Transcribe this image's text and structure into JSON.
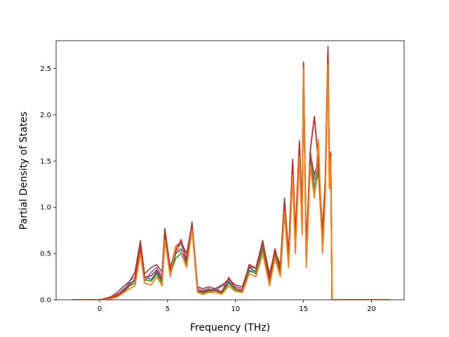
{
  "chart_data": {
    "type": "line",
    "title": "",
    "xlabel": "Frequency (THz)",
    "ylabel": "Partial Density of States",
    "xlim": [
      -3.2,
      22.4
    ],
    "ylim": [
      0,
      2.8
    ],
    "xticks": [
      0,
      5,
      10,
      15,
      20
    ],
    "yticks": [
      0.0,
      0.5,
      1.0,
      1.5,
      2.0,
      2.5
    ],
    "xtick_labels": [
      "0",
      "5",
      "10",
      "15",
      "20"
    ],
    "ytick_labels": [
      "0.0",
      "0.5",
      "1.0",
      "1.5",
      "2.0",
      "2.5"
    ],
    "grid": false,
    "legend": false,
    "colors": [
      "#1f77b4",
      "#9467bd",
      "#2ca02c",
      "#8c564b",
      "#d62728",
      "#ff7f0e"
    ],
    "series": [
      {
        "color": "#1f77b4",
        "x": [
          -2.0,
          0.0,
          0.8,
          1.3,
          1.8,
          2.2,
          2.6,
          3.0,
          3.3,
          3.8,
          4.2,
          4.6,
          4.8,
          5.2,
          5.6,
          6.0,
          6.4,
          6.8,
          7.2,
          7.6,
          8.0,
          8.5,
          9.0,
          9.5,
          10.0,
          10.5,
          11.0,
          11.5,
          12.0,
          12.5,
          12.9,
          13.3,
          13.6,
          13.9,
          14.2,
          14.4,
          14.7,
          14.9,
          15.0,
          15.2,
          15.5,
          15.8,
          16.1,
          16.4,
          16.6,
          16.8,
          16.9,
          17.0,
          17.1,
          17.5,
          19.0,
          21.3
        ],
        "y": [
          0,
          0,
          0.02,
          0.05,
          0.12,
          0.18,
          0.2,
          0.62,
          0.25,
          0.22,
          0.3,
          0.2,
          0.76,
          0.3,
          0.5,
          0.55,
          0.4,
          0.84,
          0.1,
          0.08,
          0.1,
          0.12,
          0.08,
          0.2,
          0.12,
          0.1,
          0.35,
          0.3,
          0.6,
          0.2,
          0.55,
          0.3,
          1.1,
          0.4,
          1.5,
          0.6,
          1.7,
          0.8,
          2.57,
          0.4,
          1.6,
          1.2,
          1.5,
          0.6,
          1.2,
          2.74,
          1.3,
          1.6,
          0,
          0,
          0,
          0
        ]
      },
      {
        "color": "#9467bd",
        "x": [
          -2.0,
          0.0,
          0.8,
          1.3,
          1.8,
          2.2,
          2.6,
          3.0,
          3.3,
          3.8,
          4.2,
          4.6,
          4.8,
          5.2,
          5.6,
          6.0,
          6.4,
          6.8,
          7.2,
          7.6,
          8.0,
          8.5,
          9.0,
          9.5,
          10.0,
          10.5,
          11.0,
          11.5,
          12.0,
          12.5,
          12.9,
          13.3,
          13.6,
          13.9,
          14.2,
          14.4,
          14.7,
          14.9,
          15.0,
          15.2,
          15.5,
          15.8,
          16.1,
          16.4,
          16.6,
          16.8,
          16.9,
          17.0,
          17.1,
          17.5,
          19.0,
          21.3
        ],
        "y": [
          0,
          0,
          0.02,
          0.06,
          0.1,
          0.2,
          0.25,
          0.6,
          0.2,
          0.3,
          0.35,
          0.25,
          0.75,
          0.35,
          0.55,
          0.6,
          0.45,
          0.8,
          0.12,
          0.1,
          0.12,
          0.1,
          0.15,
          0.18,
          0.14,
          0.12,
          0.3,
          0.32,
          0.58,
          0.25,
          0.5,
          0.35,
          1.05,
          0.45,
          1.45,
          0.65,
          1.65,
          0.9,
          2.5,
          0.5,
          1.55,
          1.3,
          1.45,
          0.7,
          1.25,
          2.7,
          1.35,
          1.55,
          0,
          0,
          0,
          0
        ]
      },
      {
        "color": "#2ca02c",
        "x": [
          -2.0,
          0.0,
          0.8,
          1.3,
          1.8,
          2.2,
          2.6,
          3.0,
          3.3,
          3.8,
          4.2,
          4.6,
          4.8,
          5.2,
          5.6,
          6.0,
          6.4,
          6.8,
          7.2,
          7.6,
          8.0,
          8.5,
          9.0,
          9.5,
          10.0,
          10.5,
          11.0,
          11.5,
          12.0,
          12.5,
          12.9,
          13.3,
          13.6,
          13.9,
          14.2,
          14.4,
          14.7,
          14.9,
          15.0,
          15.2,
          15.5,
          15.8,
          16.1,
          16.4,
          16.6,
          16.8,
          16.9,
          17.0,
          17.1,
          17.5,
          19.0,
          21.3
        ],
        "y": [
          0,
          0,
          0.01,
          0.04,
          0.09,
          0.15,
          0.18,
          0.55,
          0.22,
          0.2,
          0.28,
          0.18,
          0.7,
          0.28,
          0.45,
          0.5,
          0.38,
          0.78,
          0.09,
          0.07,
          0.09,
          0.1,
          0.07,
          0.18,
          0.1,
          0.09,
          0.32,
          0.28,
          0.55,
          0.18,
          0.5,
          0.28,
          1.0,
          0.38,
          1.4,
          0.55,
          1.6,
          0.75,
          2.45,
          0.38,
          1.5,
          1.15,
          1.4,
          0.55,
          1.15,
          2.6,
          1.25,
          1.5,
          0,
          0,
          0,
          0
        ]
      },
      {
        "color": "#8c564b",
        "x": [
          -2.0,
          0.0,
          0.8,
          1.3,
          1.8,
          2.2,
          2.6,
          3.0,
          3.3,
          3.8,
          4.2,
          4.6,
          4.8,
          5.2,
          5.6,
          6.0,
          6.4,
          6.8,
          7.2,
          7.6,
          8.0,
          8.5,
          9.0,
          9.5,
          10.0,
          10.5,
          11.0,
          11.5,
          12.0,
          12.5,
          12.9,
          13.3,
          13.6,
          13.9,
          14.2,
          14.4,
          14.7,
          14.9,
          15.0,
          15.2,
          15.5,
          15.8,
          16.1,
          16.4,
          16.6,
          16.8,
          16.9,
          17.0,
          17.1,
          17.5,
          19.0,
          21.3
        ],
        "y": [
          0,
          0,
          0.03,
          0.08,
          0.15,
          0.2,
          0.3,
          0.64,
          0.28,
          0.35,
          0.38,
          0.3,
          0.77,
          0.32,
          0.58,
          0.62,
          0.5,
          0.82,
          0.14,
          0.12,
          0.14,
          0.12,
          0.16,
          0.22,
          0.16,
          0.14,
          0.36,
          0.34,
          0.62,
          0.28,
          0.52,
          0.38,
          1.08,
          0.5,
          1.52,
          0.7,
          1.72,
          0.95,
          2.55,
          0.55,
          1.58,
          1.35,
          1.5,
          0.75,
          1.3,
          2.72,
          1.4,
          1.58,
          0,
          0,
          0,
          0
        ]
      },
      {
        "color": "#d62728",
        "x": [
          -2.0,
          0.0,
          0.8,
          1.3,
          1.8,
          2.2,
          2.6,
          3.0,
          3.3,
          3.8,
          4.2,
          4.6,
          4.8,
          5.2,
          5.6,
          6.0,
          6.4,
          6.8,
          7.2,
          7.6,
          8.0,
          8.5,
          9.0,
          9.5,
          10.0,
          10.5,
          11.0,
          11.5,
          12.0,
          12.5,
          12.9,
          13.3,
          13.6,
          13.9,
          14.2,
          14.4,
          14.7,
          14.9,
          15.0,
          15.2,
          15.5,
          15.8,
          16.1,
          16.4,
          16.6,
          16.8,
          16.9,
          17.0,
          17.1,
          17.5,
          19.0,
          21.3
        ],
        "y": [
          0,
          0,
          0.02,
          0.05,
          0.1,
          0.16,
          0.22,
          0.58,
          0.24,
          0.26,
          0.32,
          0.22,
          0.72,
          0.3,
          0.52,
          0.65,
          0.42,
          0.8,
          0.1,
          0.09,
          0.11,
          0.1,
          0.09,
          0.24,
          0.12,
          0.1,
          0.38,
          0.34,
          0.64,
          0.22,
          0.55,
          0.32,
          1.05,
          0.42,
          1.48,
          0.62,
          1.68,
          0.85,
          2.52,
          0.45,
          1.62,
          1.98,
          1.48,
          0.65,
          1.2,
          2.68,
          1.32,
          1.58,
          0,
          0,
          0,
          0
        ]
      },
      {
        "color": "#ff7f0e",
        "x": [
          -2.0,
          0.0,
          0.8,
          1.3,
          1.8,
          2.2,
          2.6,
          3.0,
          3.3,
          3.8,
          4.2,
          4.6,
          4.8,
          5.2,
          5.6,
          6.0,
          6.4,
          6.8,
          7.2,
          7.6,
          8.0,
          8.5,
          9.0,
          9.5,
          10.0,
          10.5,
          11.0,
          11.5,
          12.0,
          12.5,
          12.9,
          13.3,
          13.6,
          13.9,
          14.2,
          14.4,
          14.7,
          14.9,
          15.0,
          15.2,
          15.5,
          15.8,
          16.1,
          16.4,
          16.6,
          16.8,
          16.9,
          17.0,
          17.1,
          17.5,
          19.0,
          21.3
        ],
        "y": [
          0,
          0,
          0.01,
          0.03,
          0.08,
          0.12,
          0.15,
          0.5,
          0.18,
          0.16,
          0.25,
          0.15,
          0.65,
          0.25,
          0.58,
          0.5,
          0.35,
          0.76,
          0.08,
          0.06,
          0.08,
          0.08,
          0.06,
          0.15,
          0.09,
          0.08,
          0.28,
          0.25,
          0.5,
          0.15,
          0.45,
          0.25,
          0.95,
          0.35,
          1.35,
          0.5,
          1.55,
          0.7,
          2.5,
          0.35,
          1.45,
          1.1,
          1.73,
          0.5,
          1.1,
          2.55,
          1.2,
          1.55,
          0,
          0,
          0,
          0
        ]
      }
    ]
  }
}
